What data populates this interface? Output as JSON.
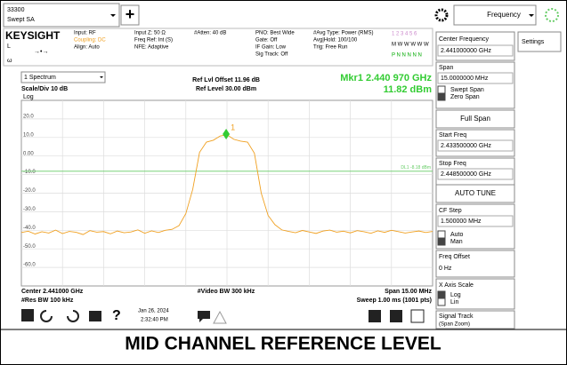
{
  "top_bar": {
    "mode_line1": "33300",
    "mode_line2": "Swept SA",
    "add": "+",
    "menu": "Frequency",
    "settings_tab": "Settings"
  },
  "status": {
    "brand": "KEYSIGHT",
    "sub1": "L",
    "sub2": "→•→",
    "sub3": "ω",
    "col1": [
      "Input: RF",
      "Coupling: DC",
      "Align: Auto"
    ],
    "col2": [
      "Input Z: 50 Ω",
      "Freq Ref: Int (S)",
      "NFE: Adaptive"
    ],
    "col3": [
      "#Atten: 40 dB"
    ],
    "col4": [
      "PNO: Best Wide",
      "Gate: Off",
      "IF Gain: Low",
      "Sig Track: Off"
    ],
    "col5": [
      "#Avg Type: Power (RMS)",
      "Avg|Hold: 100/100",
      "Trig: Free Run"
    ],
    "trace_numbers": "1 2 3 4 5 6",
    "trace_types": "M W W W W W",
    "trace_dets": "P N N N N N"
  },
  "panel": {
    "center_label": "Center Frequency",
    "center_value": "2.441000000 GHz",
    "span_label": "Span",
    "span_value": "15.0000000 MHz",
    "swept": "Swept Span",
    "zero": "Zero Span",
    "full_span": "Full Span",
    "start_label": "Start Freq",
    "start_value": "2.433500000 GHz",
    "stop_label": "Stop Freq",
    "stop_value": "2.448500000 GHz",
    "auto_tune": "AUTO TUNE",
    "cf_label": "CF Step",
    "cf_value": "1.500000 MHz",
    "auto": "Auto",
    "man": "Man",
    "offset_label": "Freq Offset",
    "offset_value": "0 Hz",
    "xscale_label": "X Axis Scale",
    "log": "Log",
    "lin": "Lin",
    "track_label": "Signal Track",
    "track_sub": "(Span Zoom)"
  },
  "chart_data": {
    "type": "line",
    "window": "1 Spectrum",
    "scale": "Scale/Div 10 dB",
    "scale_type": "Log",
    "ref_offset": "Ref Lvl Offset 11.96 dB",
    "ref_level": "Ref Level 30.00 dBm",
    "marker_text": "Mkr1  2.440 970 GHz",
    "marker_value_label": "11.82 dBm",
    "marker": {
      "x": 2.44097,
      "value": 11.82,
      "label": "1"
    },
    "display_line": {
      "value": -8.18,
      "label": "DL1 -8.18 dBm"
    },
    "footer": {
      "center": "Center 2.441000 GHz",
      "rbw": "#Res BW 100 kHz",
      "vbw": "#Video BW 300 kHz",
      "span": "Span 15.00 MHz",
      "sweep": "Sweep 1.00 ms (1001 pts)"
    },
    "xlim": [
      2.4335,
      2.4485
    ],
    "ylim": [
      -70,
      30
    ],
    "yticks": [
      {
        "value": 20,
        "label": "20.0"
      },
      {
        "value": 10,
        "label": "10.0"
      },
      {
        "value": 0,
        "label": "0.00"
      },
      {
        "value": -10,
        "label": "-10.0"
      },
      {
        "value": -20,
        "label": "-20.0"
      },
      {
        "value": -30,
        "label": "-30.0"
      },
      {
        "value": -40,
        "label": "-40.0"
      },
      {
        "value": -50,
        "label": "-50.0"
      },
      {
        "value": -60,
        "label": "-60.0"
      }
    ],
    "color": "#f0a020",
    "grid": true,
    "x": [
      2.4335,
      2.43375,
      2.434,
      2.43425,
      2.4345,
      2.43475,
      2.435,
      2.43525,
      2.4355,
      2.43575,
      2.436,
      2.43625,
      2.4365,
      2.43675,
      2.437,
      2.43725,
      2.4375,
      2.43775,
      2.438,
      2.43825,
      2.4385,
      2.43875,
      2.439,
      2.43925,
      2.4395,
      2.43975,
      2.44,
      2.44025,
      2.4405,
      2.44075,
      2.441,
      2.44125,
      2.4415,
      2.44175,
      2.442,
      2.44225,
      2.4425,
      2.44275,
      2.443,
      2.44325,
      2.4435,
      2.44375,
      2.444,
      2.44425,
      2.4445,
      2.44475,
      2.445,
      2.44525,
      2.4455,
      2.44575,
      2.446,
      2.44625,
      2.4465,
      2.44675,
      2.447,
      2.44725,
      2.4475,
      2.44775,
      2.448,
      2.44825,
      2.4485
    ],
    "values": [
      -41.2,
      -40.5,
      -42.0,
      -40.8,
      -41.5,
      -39.9,
      -41.8,
      -40.6,
      -41.1,
      -42.3,
      -40.2,
      -41.0,
      -40.7,
      -41.9,
      -40.4,
      -41.3,
      -40.9,
      -39.8,
      -41.6,
      -40.3,
      -41.2,
      -40.0,
      -39.5,
      -37.5,
      -31.0,
      -18.0,
      2.0,
      7.5,
      8.5,
      10.8,
      11.5,
      9.0,
      8.0,
      7.5,
      1.5,
      -20.0,
      -32.0,
      -37.0,
      -39.8,
      -40.6,
      -41.3,
      -40.1,
      -40.9,
      -41.7,
      -40.4,
      -39.9,
      -41.0,
      -40.5,
      -41.4,
      -40.2,
      -40.8,
      -41.6,
      -40.3,
      -41.1,
      -40.0,
      -40.7,
      -41.5,
      -40.9,
      -40.4,
      -41.2,
      -40.6
    ]
  },
  "taskbar": {
    "date": "Jan 26, 2024",
    "time": "2:32:40 PM"
  },
  "caption": "MID CHANNEL REFERENCE LEVEL"
}
